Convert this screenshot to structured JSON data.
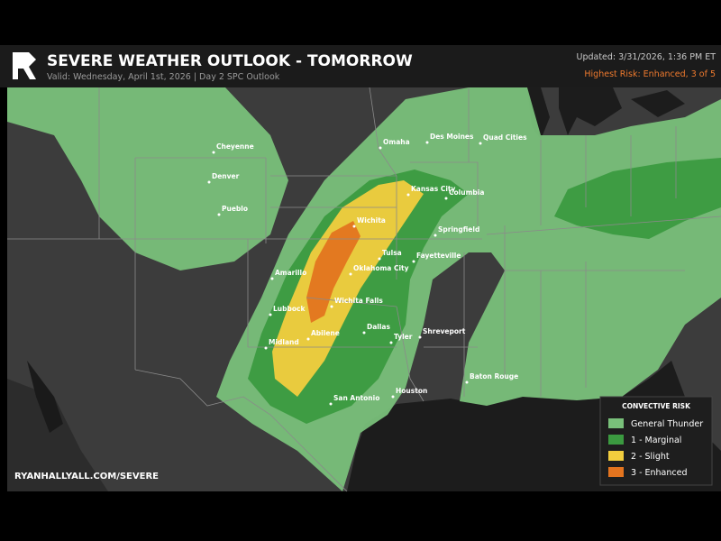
{
  "header": {
    "title": "SEVERE WEATHER OUTLOOK - TOMORROW",
    "subtitle": "Valid: Wednesday, April 1st, 2026  |  Day 2 SPC Outlook",
    "updated": "Updated: 3/31/2026, 1:36 PM ET",
    "highest_risk": "Highest Risk: Enhanced, 3 of 5"
  },
  "map": {
    "cities": [
      "Cheyenne",
      "Denver",
      "Pueblo",
      "Omaha",
      "Des Moines",
      "Quad Cities",
      "Kansas City",
      "Columbia",
      "Wichita",
      "Springfield",
      "Tulsa",
      "Fayetteville",
      "Oklahoma City",
      "Amarillo",
      "Wichita Falls",
      "Lubbock",
      "Dallas",
      "Abilene",
      "Midland",
      "Tyler",
      "Shreveport",
      "Baton Rouge",
      "San Antonio",
      "Houston"
    ],
    "legend": {
      "title": "CONVECTIVE RISK",
      "items": [
        {
          "label": "General Thunder",
          "color": "#79c07a"
        },
        {
          "label": "1 - Marginal",
          "color": "#3b9a40"
        },
        {
          "label": "2 - Slight",
          "color": "#f2cd3e"
        },
        {
          "label": "3 - Enhanced",
          "color": "#e3741f"
        }
      ]
    }
  },
  "footer": {
    "url": "RYANHALLYALL.COM/SEVERE"
  }
}
